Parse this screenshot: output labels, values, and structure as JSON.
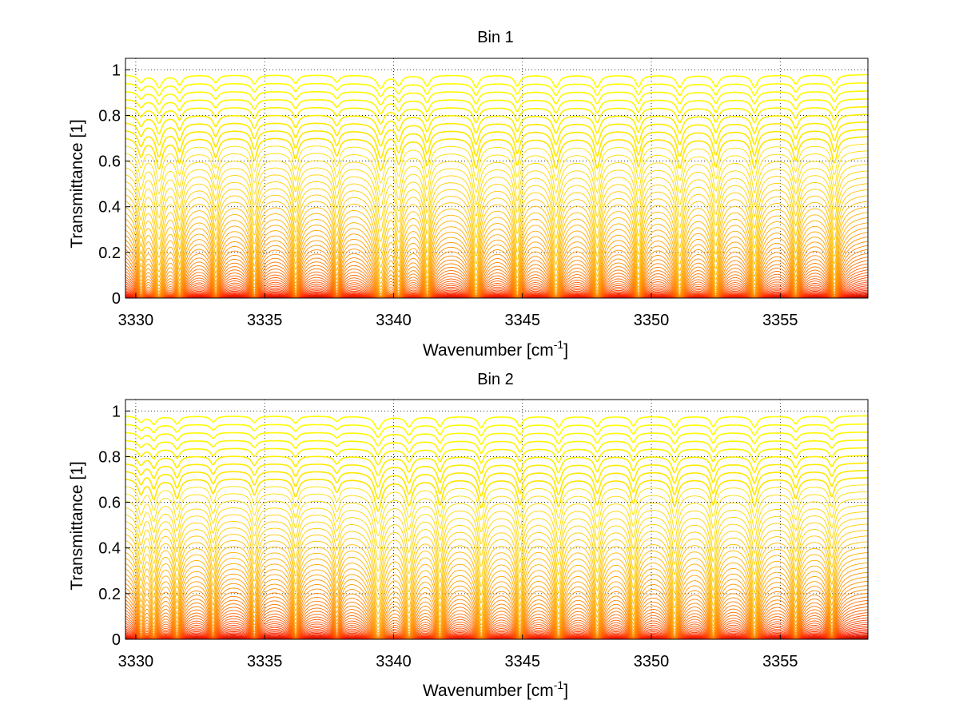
{
  "chart_data": [
    {
      "type": "line",
      "title": "Bin 1",
      "xlabel": "Wavenumber [cm",
      "xlabel_sup": "-1",
      "xlabel_end": "]",
      "ylabel": "Transmittance [1]",
      "xlim": [
        3329.6,
        3358.4
      ],
      "ylim": [
        0,
        1.05
      ],
      "xticks": [
        3330,
        3335,
        3340,
        3345,
        3350,
        3355
      ],
      "yticks": [
        0,
        0.2,
        0.4,
        0.6,
        0.8,
        1
      ],
      "xtick_labels": [
        "3330",
        "3335",
        "3340",
        "3345",
        "3350",
        "3355"
      ],
      "ytick_labels": [
        "0",
        "0.2",
        "0.4",
        "0.6",
        "0.8",
        "1"
      ],
      "grid": "dotted",
      "series_count": 60,
      "colormap": [
        "#8b0000",
        "#ff2200",
        "#ff7a00",
        "#ffcc00",
        "#ffff00"
      ],
      "absorption_lines": [
        {
          "x": 3330.2,
          "depth": 0.55,
          "width": 0.12
        },
        {
          "x": 3330.9,
          "depth": 0.95,
          "width": 0.14
        },
        {
          "x": 3331.7,
          "depth": 0.75,
          "width": 0.12
        },
        {
          "x": 3333.1,
          "depth": 0.6,
          "width": 0.12
        },
        {
          "x": 3334.6,
          "depth": 0.7,
          "width": 0.12
        },
        {
          "x": 3336.2,
          "depth": 0.65,
          "width": 0.12
        },
        {
          "x": 3337.8,
          "depth": 0.55,
          "width": 0.12
        },
        {
          "x": 3339.5,
          "depth": 1.0,
          "width": 0.16
        },
        {
          "x": 3340.2,
          "depth": 0.75,
          "width": 0.12
        },
        {
          "x": 3341.3,
          "depth": 0.85,
          "width": 0.12
        },
        {
          "x": 3343.2,
          "depth": 0.95,
          "width": 0.13
        },
        {
          "x": 3344.8,
          "depth": 0.85,
          "width": 0.12
        },
        {
          "x": 3346.3,
          "depth": 0.95,
          "width": 0.14
        },
        {
          "x": 3347.9,
          "depth": 0.95,
          "width": 0.13
        },
        {
          "x": 3349.5,
          "depth": 0.9,
          "width": 0.12
        },
        {
          "x": 3351.1,
          "depth": 0.95,
          "width": 0.14
        },
        {
          "x": 3352.5,
          "depth": 0.9,
          "width": 0.13
        },
        {
          "x": 3354.0,
          "depth": 0.95,
          "width": 0.13
        },
        {
          "x": 3355.6,
          "depth": 0.7,
          "width": 0.12
        },
        {
          "x": 3357.1,
          "depth": 0.8,
          "width": 0.12
        }
      ]
    },
    {
      "type": "line",
      "title": "Bin 2",
      "xlabel": "Wavenumber [cm",
      "xlabel_sup": "-1",
      "xlabel_end": "]",
      "ylabel": "Transmittance [1]",
      "xlim": [
        3329.6,
        3358.4
      ],
      "ylim": [
        0,
        1.05
      ],
      "xticks": [
        3330,
        3335,
        3340,
        3345,
        3350,
        3355
      ],
      "yticks": [
        0,
        0.2,
        0.4,
        0.6,
        0.8,
        1
      ],
      "xtick_labels": [
        "3330",
        "3335",
        "3340",
        "3345",
        "3350",
        "3355"
      ],
      "ytick_labels": [
        "0",
        "0.2",
        "0.4",
        "0.6",
        "0.8",
        "1"
      ],
      "grid": "dotted",
      "series_count": 60,
      "colormap": [
        "#8b0000",
        "#ff2200",
        "#ff7a00",
        "#ffcc00",
        "#ffff00"
      ],
      "absorption_lines": [
        {
          "x": 3330.2,
          "depth": 0.45,
          "width": 0.12
        },
        {
          "x": 3330.7,
          "depth": 0.6,
          "width": 0.12
        },
        {
          "x": 3331.6,
          "depth": 0.6,
          "width": 0.12
        },
        {
          "x": 3333.0,
          "depth": 0.45,
          "width": 0.12
        },
        {
          "x": 3334.6,
          "depth": 0.5,
          "width": 0.12
        },
        {
          "x": 3336.2,
          "depth": 0.55,
          "width": 0.12
        },
        {
          "x": 3337.8,
          "depth": 0.4,
          "width": 0.12
        },
        {
          "x": 3339.4,
          "depth": 1.0,
          "width": 0.16
        },
        {
          "x": 3340.6,
          "depth": 0.8,
          "width": 0.14
        },
        {
          "x": 3341.8,
          "depth": 0.8,
          "width": 0.12
        },
        {
          "x": 3343.4,
          "depth": 0.9,
          "width": 0.13
        },
        {
          "x": 3344.9,
          "depth": 0.8,
          "width": 0.12
        },
        {
          "x": 3346.4,
          "depth": 0.85,
          "width": 0.13
        },
        {
          "x": 3347.9,
          "depth": 0.8,
          "width": 0.13
        },
        {
          "x": 3349.3,
          "depth": 0.75,
          "width": 0.12
        },
        {
          "x": 3350.9,
          "depth": 0.85,
          "width": 0.13
        },
        {
          "x": 3352.4,
          "depth": 0.8,
          "width": 0.12
        },
        {
          "x": 3354.0,
          "depth": 0.85,
          "width": 0.13
        },
        {
          "x": 3355.6,
          "depth": 0.6,
          "width": 0.12
        },
        {
          "x": 3357.0,
          "depth": 0.55,
          "width": 0.12
        }
      ]
    }
  ]
}
